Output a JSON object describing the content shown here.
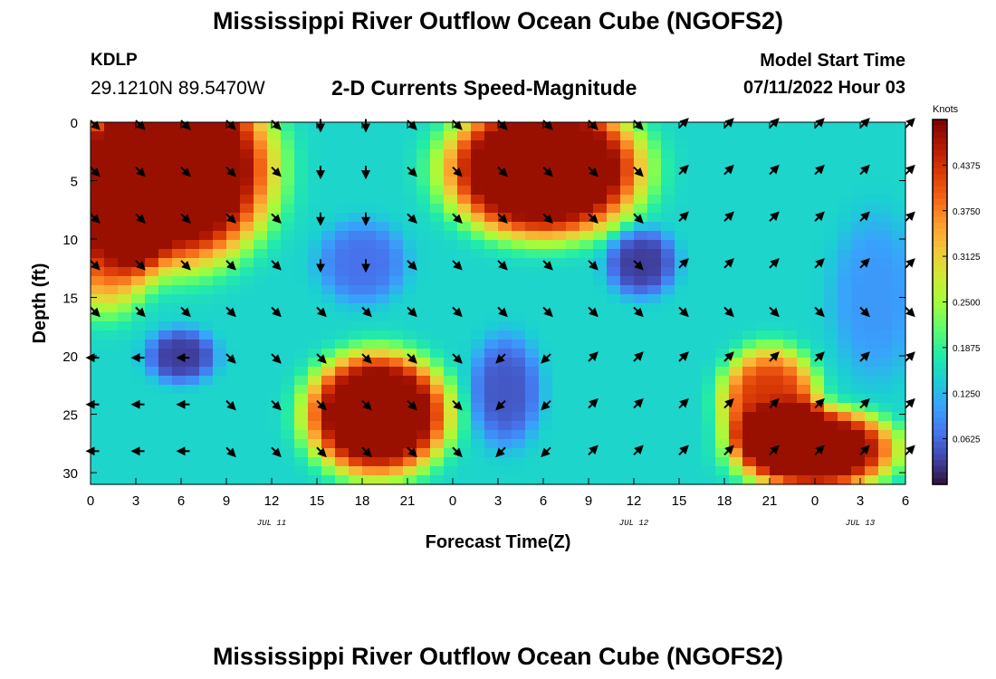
{
  "page": {
    "title": "Mississippi River Outflow Ocean Cube (NGOFS2)",
    "title_repeat": "Mississippi River Outflow Ocean Cube (NGOFS2)"
  },
  "station": {
    "id": "KDLP",
    "coords": "29.1210N  89.5470W"
  },
  "model": {
    "label": "Model Start Time",
    "value": "07/11/2022 Hour 03"
  },
  "chart_data": {
    "type": "heatmap",
    "subtitle": "2-D Currents Speed-Magnitude",
    "xlabel": "Forecast Time(Z)",
    "ylabel": "Depth (ft)",
    "x_tick_labels": [
      "0",
      "3",
      "6",
      "9",
      "12",
      "15",
      "18",
      "21",
      "0",
      "3",
      "6",
      "9",
      "12",
      "15",
      "18",
      "21",
      "0",
      "3",
      "6"
    ],
    "date_labels": [
      {
        "label": "JUL 11",
        "at_hour": 12
      },
      {
        "label": "JUL 12",
        "at_hour": 36
      },
      {
        "label": "JUL 13",
        "at_hour": 51
      }
    ],
    "x_range_hours": [
      0,
      54
    ],
    "y_ticks": [
      0,
      5,
      10,
      15,
      20,
      25,
      30
    ],
    "y_range_ft": [
      0,
      31
    ],
    "colorbar": {
      "unit": "Knots",
      "ticks": [
        "0.4375",
        "0.3750",
        "0.3125",
        "0.2500",
        "0.1875",
        "0.1250",
        "0.0625"
      ],
      "range": [
        0,
        0.5
      ],
      "colors": [
        "#30123b",
        "#4145ab",
        "#4675ed",
        "#39a2fc",
        "#1bcfd4",
        "#24eca6",
        "#61fc6c",
        "#a4fc3b",
        "#d1e834",
        "#f3c63a",
        "#fe9b2d",
        "#f36315",
        "#d93806",
        "#b11901",
        "#7a0402"
      ]
    },
    "depths_ft": [
      0,
      4,
      8,
      12,
      16,
      20,
      24,
      28
    ],
    "arrow_hours": [
      0,
      3,
      6,
      9,
      12,
      15,
      18,
      21,
      24,
      27,
      30,
      33,
      36,
      39,
      42,
      45,
      48,
      51,
      54
    ],
    "speed_blobs": [
      {
        "hour": 5.5,
        "depth_ft": 4,
        "sh": 5.5,
        "sd": 7,
        "amp": 0.42
      },
      {
        "hour": 1,
        "depth_ft": 9,
        "sh": 3,
        "sd": 6,
        "amp": 0.25
      },
      {
        "hour": 30,
        "depth_ft": 4,
        "sh": 5.5,
        "sd": 5,
        "amp": 0.42
      },
      {
        "hour": 19,
        "depth_ft": 25,
        "sh": 4,
        "sd": 4.5,
        "amp": 0.4
      },
      {
        "hour": 45,
        "depth_ft": 24,
        "sh": 2.8,
        "sd": 4,
        "amp": 0.28
      },
      {
        "hour": 48,
        "depth_ft": 28,
        "sh": 4.5,
        "sd": 3,
        "amp": 0.38
      },
      {
        "hour": 6,
        "depth_ft": 20,
        "sh": 2,
        "sd": 2,
        "amp": -0.12
      },
      {
        "hour": 18,
        "depth_ft": 12,
        "sh": 2.5,
        "sd": 3,
        "amp": -0.08
      },
      {
        "hour": 36.5,
        "depth_ft": 12,
        "sh": 2,
        "sd": 2.5,
        "amp": -0.12
      },
      {
        "hour": 27.5,
        "depth_ft": 23,
        "sh": 2,
        "sd": 4,
        "amp": -0.1
      },
      {
        "hour": 52,
        "depth_ft": 15,
        "sh": 2.5,
        "sd": 6,
        "amp": -0.05
      }
    ],
    "direction_regions": [
      {
        "h0": 0,
        "h1": 13,
        "d0": 0,
        "d1": 14,
        "dir": "SE"
      },
      {
        "h0": 13,
        "h1": 19,
        "d0": 0,
        "d1": 14,
        "dir": "S"
      },
      {
        "h0": 19,
        "h1": 26,
        "d0": 0,
        "d1": 14,
        "dir": "SE"
      },
      {
        "h0": 26,
        "h1": 37,
        "d0": 0,
        "d1": 14,
        "dir": "SE"
      },
      {
        "h0": 37,
        "h1": 54,
        "d0": 0,
        "d1": 14,
        "dir": "NE"
      },
      {
        "h0": 0,
        "h1": 54,
        "d0": 14,
        "d1": 18,
        "dir": "SE"
      },
      {
        "h0": 0,
        "h1": 8,
        "d0": 18,
        "d1": 31,
        "dir": "W"
      },
      {
        "h0": 8,
        "h1": 25,
        "d0": 18,
        "d1": 31,
        "dir": "SE"
      },
      {
        "h0": 25,
        "h1": 30,
        "d0": 18,
        "d1": 31,
        "dir": "SW"
      },
      {
        "h0": 30,
        "h1": 54,
        "d0": 18,
        "d1": 31,
        "dir": "NE"
      }
    ]
  }
}
